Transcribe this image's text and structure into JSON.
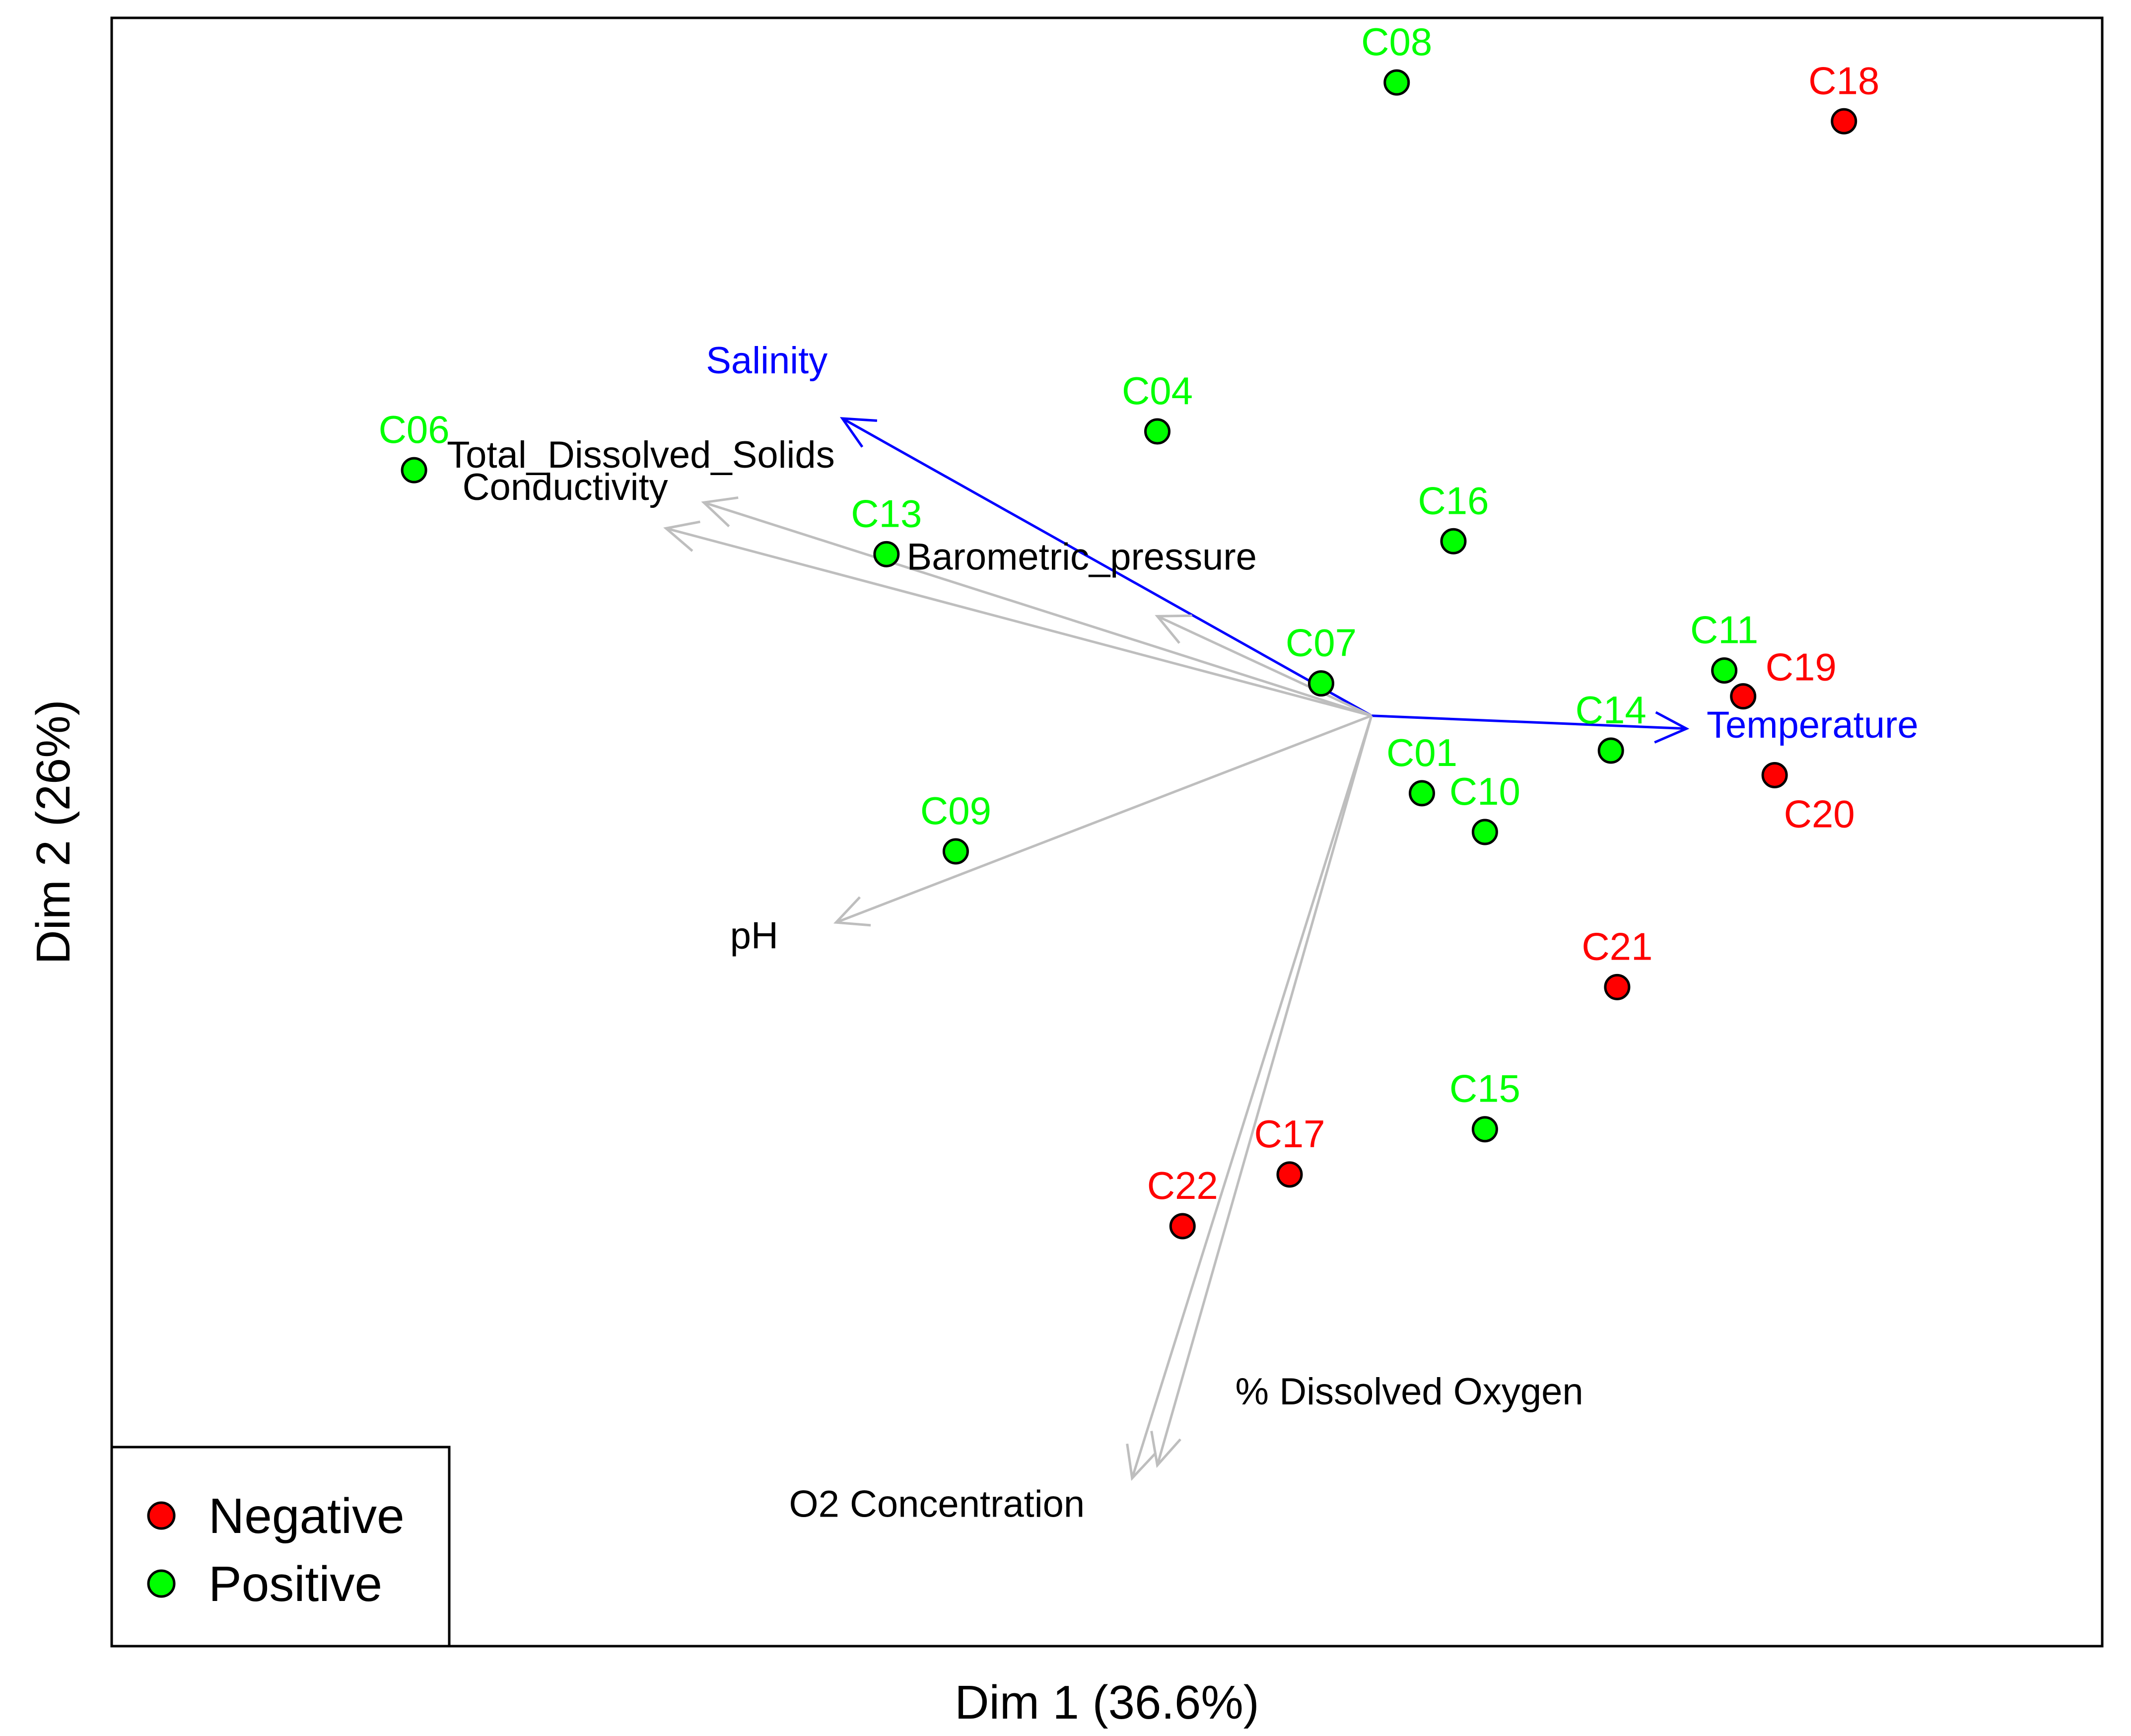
{
  "chart_data": {
    "type": "scatter",
    "subtype": "pca-biplot",
    "title": "",
    "xlabel": "Dim 1 (36.6%)",
    "ylabel": "Dim 2 (26%)",
    "xlim": [
      -1.0,
      0.58
    ],
    "ylim": [
      -0.72,
      0.54
    ],
    "grid": false,
    "legend": {
      "position": "bottom-left",
      "entries": [
        {
          "name": "Negative",
          "color": "#ff0000"
        },
        {
          "name": "Positive",
          "color": "#00ff00"
        }
      ]
    },
    "colors": {
      "Negative": "#ff0000",
      "Positive": "#00ff00",
      "highlight_vector": "#0000ff",
      "vector": "#bebebe"
    },
    "points": [
      {
        "label": "C01",
        "group": "Positive",
        "x": 0.04,
        "y": -0.06,
        "label_pos": "above"
      },
      {
        "label": "C04",
        "group": "Positive",
        "x": -0.17,
        "y": 0.22,
        "label_pos": "above"
      },
      {
        "label": "C06",
        "group": "Positive",
        "x": -0.76,
        "y": 0.19,
        "label_pos": "above"
      },
      {
        "label": "C07",
        "group": "Positive",
        "x": -0.04,
        "y": 0.025,
        "label_pos": "above"
      },
      {
        "label": "C08",
        "group": "Positive",
        "x": 0.02,
        "y": 0.49,
        "label_pos": "above"
      },
      {
        "label": "C09",
        "group": "Positive",
        "x": -0.33,
        "y": -0.105,
        "label_pos": "above"
      },
      {
        "label": "C10",
        "group": "Positive",
        "x": 0.09,
        "y": -0.09,
        "label_pos": "above"
      },
      {
        "label": "C11",
        "group": "Positive",
        "x": 0.28,
        "y": 0.035,
        "label_pos": "above"
      },
      {
        "label": "C13",
        "group": "Positive",
        "x": -0.385,
        "y": 0.125,
        "label_pos": "above"
      },
      {
        "label": "C14",
        "group": "Positive",
        "x": 0.19,
        "y": -0.027,
        "label_pos": "above"
      },
      {
        "label": "C15",
        "group": "Positive",
        "x": 0.09,
        "y": -0.32,
        "label_pos": "above"
      },
      {
        "label": "C16",
        "group": "Positive",
        "x": 0.065,
        "y": 0.135,
        "label_pos": "above"
      },
      {
        "label": "C17",
        "group": "Negative",
        "x": -0.065,
        "y": -0.355,
        "label_pos": "above"
      },
      {
        "label": "C18",
        "group": "Negative",
        "x": 0.375,
        "y": 0.46,
        "label_pos": "above"
      },
      {
        "label": "C19",
        "group": "Negative",
        "x": 0.295,
        "y": 0.015,
        "label_pos": "right"
      },
      {
        "label": "C20",
        "group": "Negative",
        "x": 0.32,
        "y": -0.046,
        "label_pos": "below"
      },
      {
        "label": "C21",
        "group": "Negative",
        "x": 0.195,
        "y": -0.21,
        "label_pos": "above"
      },
      {
        "label": "C22",
        "group": "Negative",
        "x": -0.15,
        "y": -0.395,
        "label_pos": "above"
      }
    ],
    "vectors": [
      {
        "name": "Salinity",
        "x": -0.42,
        "y": 0.23,
        "highlight": true,
        "label_dx": -0.06,
        "label_dy": 0.035
      },
      {
        "name": "Temperature",
        "x": 0.25,
        "y": -0.01,
        "highlight": true,
        "label_dx": 0.1,
        "label_dy": -0.007
      },
      {
        "name": "Total_Dissolved_Solids",
        "x": -0.53,
        "y": 0.165,
        "highlight": false,
        "label_dx": -0.05,
        "label_dy": 0.027
      },
      {
        "name": "Conductivity",
        "x": -0.56,
        "y": 0.145,
        "highlight": false,
        "label_dx": -0.08,
        "label_dy": 0.022
      },
      {
        "name": "Barometric_pressure",
        "x": -0.17,
        "y": 0.077,
        "highlight": false,
        "label_dx": -0.06,
        "label_dy": 0.036
      },
      {
        "name": "pH",
        "x": -0.425,
        "y": -0.16,
        "highlight": false,
        "label_dx": -0.065,
        "label_dy": -0.02
      },
      {
        "name": "% Dissolved Oxygen",
        "x": -0.17,
        "y": -0.58,
        "highlight": false,
        "label_dx": 0.2,
        "label_dy": 0.047
      },
      {
        "name": "O2 Concentration",
        "x": -0.19,
        "y": -0.59,
        "highlight": false,
        "label_dx": -0.155,
        "label_dy": -0.03
      }
    ]
  }
}
